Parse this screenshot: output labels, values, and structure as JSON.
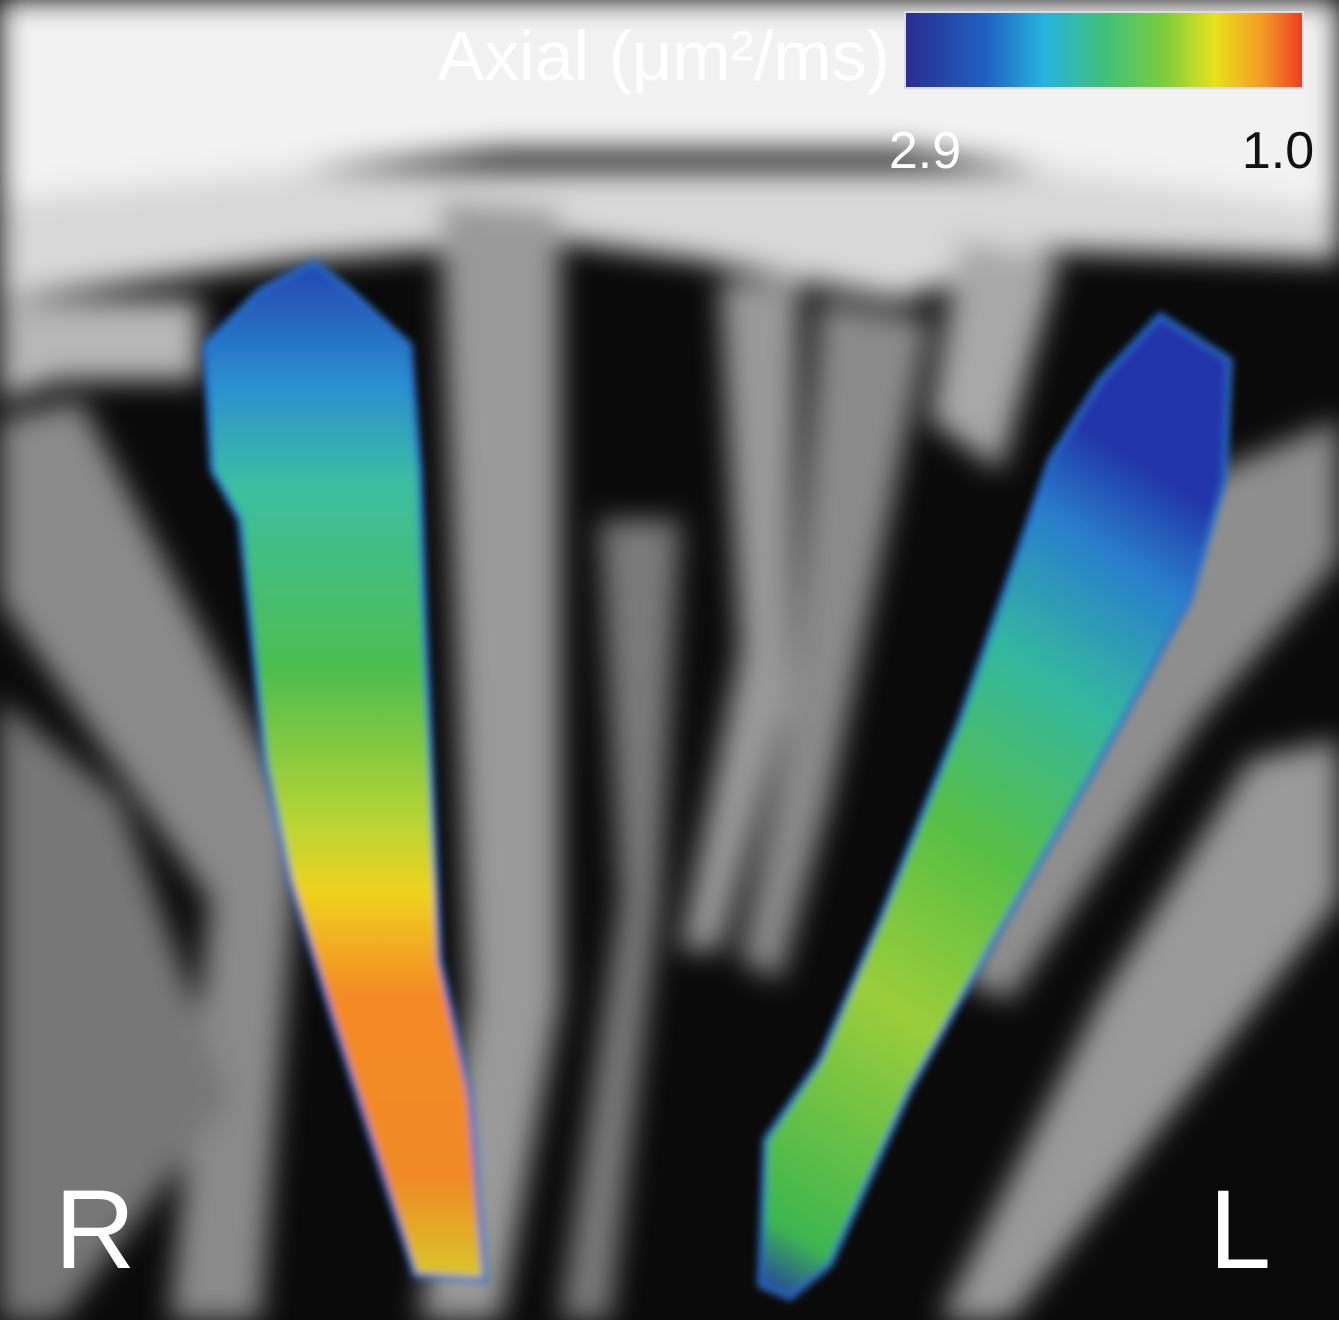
{
  "colorbar": {
    "title": "Axial (μm²/ms)",
    "left_label": "2.9",
    "right_label": "1.0"
  },
  "orientation": {
    "right": "R",
    "left": "L"
  }
}
